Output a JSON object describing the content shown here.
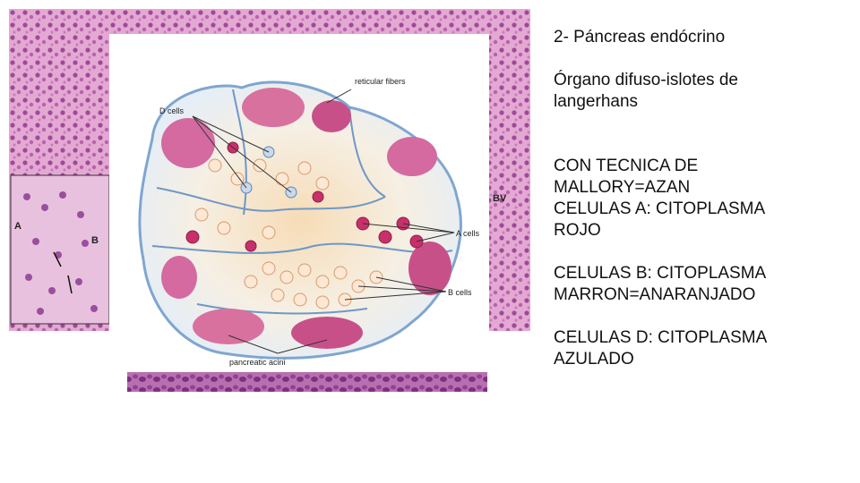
{
  "figure": {
    "label_reticular": "reticular fibers",
    "label_d_cells": "D cells",
    "label_a_cells": "A cells",
    "label_b_cells": "B cells",
    "label_acini": "pancreatic acini",
    "label_bv": "BV",
    "label_a_small": "A",
    "label_b_small": "B",
    "colors": {
      "tissue_pink": "#d98fc4",
      "acinar_purple": "#9a4f9e",
      "islet_fill": "#f6efe3",
      "b_cell_tint": "#f2c48a",
      "a_cell_red": "#c8306a",
      "d_cell_blue": "#7fa6cf"
    }
  },
  "text": {
    "title": "2- Páncreas endócrino",
    "subtitle_line1": "Órgano difuso-islotes de",
    "subtitle_line2": "langerhans",
    "technique_line1": "CON TECNICA DE",
    "technique_line2": "MALLORY=AZAN",
    "a_cells_line1": "CELULAS A: CITOPLASMA",
    "a_cells_line2": "ROJO",
    "b_cells_line1": "CELULAS B: CITOPLASMA",
    "b_cells_line2": "MARRON=ANARANJADO",
    "d_cells_line1": "CELULAS D: CITOPLASMA",
    "d_cells_line2": "AZULADO"
  }
}
